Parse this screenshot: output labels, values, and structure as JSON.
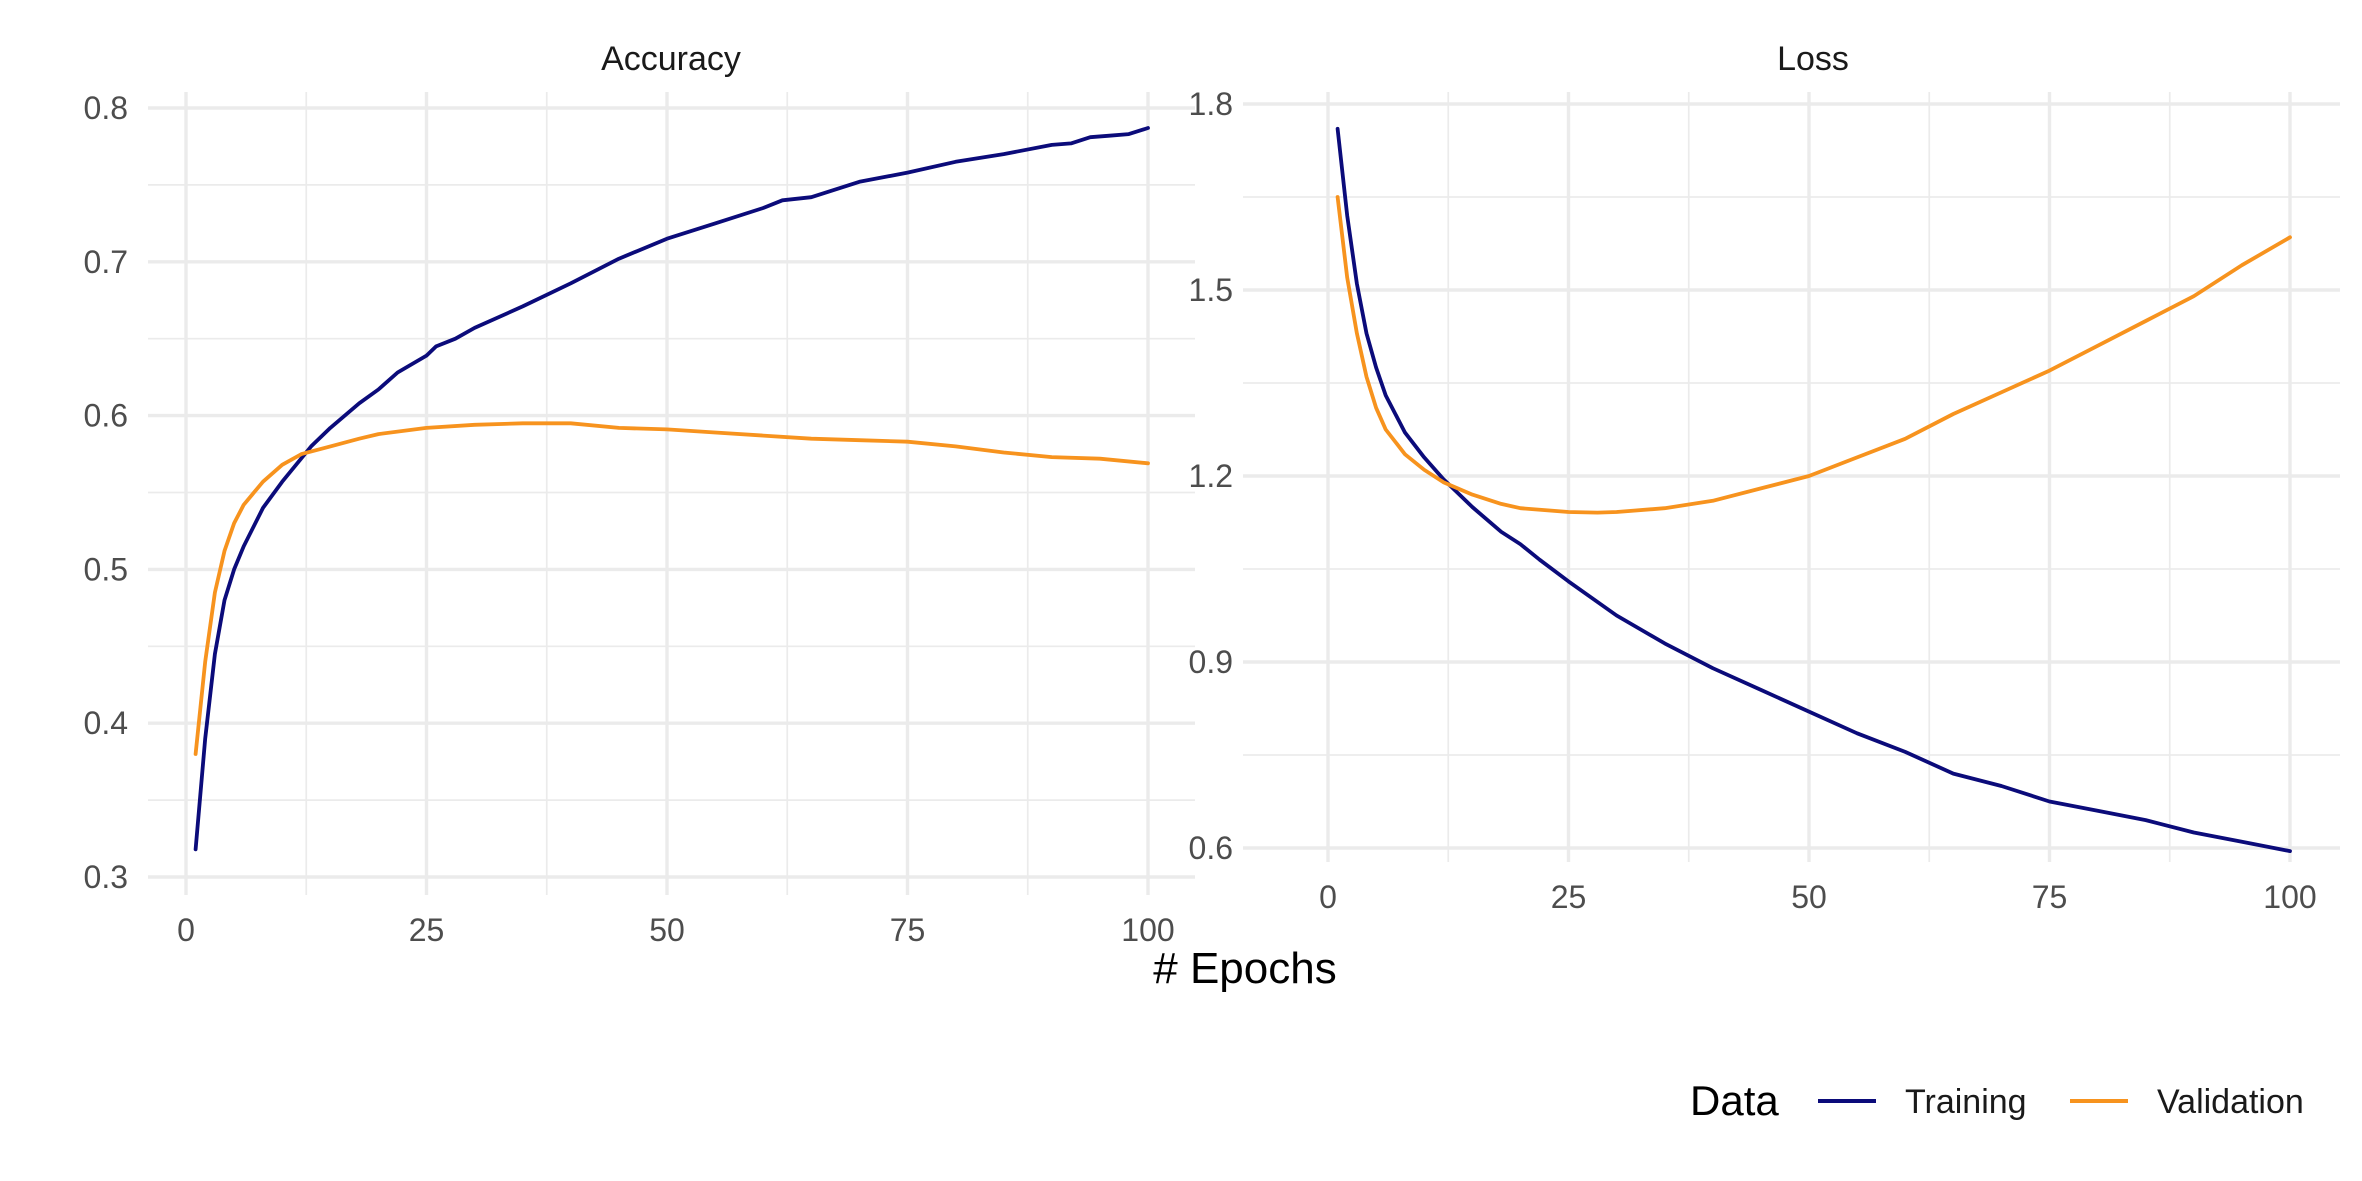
{
  "chart_data": [
    {
      "type": "line",
      "title": "Accuracy",
      "xlabel": "# Epochs",
      "ylabel": "",
      "xlim": [
        0,
        100
      ],
      "ylim": [
        0.3,
        0.8
      ],
      "x_ticks": [
        0,
        25,
        50,
        75,
        100
      ],
      "y_ticks": [
        0.3,
        0.4,
        0.5,
        0.6,
        0.7,
        0.8
      ],
      "x_tick_labels": [
        "0",
        "25",
        "50",
        "75",
        "100"
      ],
      "y_tick_labels": [
        "0.3",
        "0.4",
        "0.5",
        "0.6",
        "0.7",
        "0.8"
      ],
      "grid": true,
      "series": [
        {
          "name": "Training",
          "color": "#0b0b7a",
          "x": [
            1,
            2,
            3,
            4,
            5,
            6,
            8,
            10,
            13,
            15,
            18,
            20,
            22,
            25,
            26,
            28,
            30,
            35,
            40,
            45,
            50,
            55,
            60,
            62,
            65,
            70,
            75,
            80,
            85,
            90,
            92,
            94,
            96,
            98,
            100
          ],
          "values": [
            0.318,
            0.39,
            0.445,
            0.48,
            0.5,
            0.515,
            0.54,
            0.557,
            0.58,
            0.592,
            0.608,
            0.617,
            0.628,
            0.639,
            0.645,
            0.65,
            0.657,
            0.671,
            0.686,
            0.702,
            0.715,
            0.725,
            0.735,
            0.74,
            0.742,
            0.752,
            0.758,
            0.765,
            0.77,
            0.776,
            0.777,
            0.781,
            0.782,
            0.783,
            0.787
          ]
        },
        {
          "name": "Validation",
          "color": "#f7931e",
          "x": [
            1,
            2,
            3,
            4,
            5,
            6,
            8,
            10,
            12,
            15,
            18,
            20,
            25,
            30,
            35,
            40,
            45,
            50,
            55,
            60,
            65,
            70,
            75,
            80,
            85,
            90,
            95,
            100
          ],
          "values": [
            0.38,
            0.44,
            0.485,
            0.512,
            0.53,
            0.542,
            0.557,
            0.568,
            0.575,
            0.58,
            0.585,
            0.588,
            0.592,
            0.594,
            0.595,
            0.595,
            0.592,
            0.591,
            0.589,
            0.587,
            0.585,
            0.584,
            0.583,
            0.58,
            0.576,
            0.573,
            0.572,
            0.569
          ]
        }
      ]
    },
    {
      "type": "line",
      "title": "Loss",
      "xlabel": "# Epochs",
      "ylabel": "",
      "xlim": [
        0,
        100
      ],
      "ylim": [
        0.6,
        1.8
      ],
      "x_ticks": [
        0,
        25,
        50,
        75,
        100
      ],
      "y_ticks": [
        0.6,
        0.9,
        1.2,
        1.5,
        1.8
      ],
      "x_tick_labels": [
        "0",
        "25",
        "50",
        "75",
        "100"
      ],
      "y_tick_labels": [
        "0.6",
        "0.9",
        "1.2",
        "1.5",
        "1.8"
      ],
      "grid": true,
      "series": [
        {
          "name": "Training",
          "color": "#0b0b7a",
          "x": [
            1,
            2,
            3,
            4,
            5,
            6,
            8,
            10,
            12,
            15,
            18,
            20,
            22,
            25,
            30,
            35,
            40,
            45,
            50,
            55,
            60,
            65,
            70,
            75,
            80,
            85,
            90,
            95,
            100
          ],
          "values": [
            1.76,
            1.62,
            1.51,
            1.43,
            1.375,
            1.33,
            1.27,
            1.23,
            1.195,
            1.15,
            1.11,
            1.09,
            1.065,
            1.03,
            0.975,
            0.93,
            0.89,
            0.855,
            0.82,
            0.785,
            0.755,
            0.72,
            0.7,
            0.675,
            0.66,
            0.645,
            0.625,
            0.61,
            0.595
          ]
        },
        {
          "name": "Validation",
          "color": "#f7931e",
          "x": [
            1,
            2,
            3,
            4,
            5,
            6,
            8,
            10,
            12,
            15,
            18,
            20,
            25,
            28,
            30,
            35,
            40,
            45,
            50,
            55,
            60,
            65,
            70,
            75,
            80,
            85,
            90,
            95,
            100
          ],
          "values": [
            1.65,
            1.52,
            1.43,
            1.36,
            1.31,
            1.275,
            1.235,
            1.21,
            1.19,
            1.17,
            1.155,
            1.148,
            1.142,
            1.141,
            1.142,
            1.148,
            1.16,
            1.18,
            1.2,
            1.23,
            1.26,
            1.3,
            1.335,
            1.37,
            1.41,
            1.45,
            1.49,
            1.54,
            1.585
          ]
        }
      ]
    }
  ],
  "shared_xlabel": "# Epochs",
  "legend": {
    "title": "Data",
    "placement": "bottom-right",
    "items": [
      {
        "label": "Training",
        "color": "#0b0b7a"
      },
      {
        "label": "Validation",
        "color": "#f7931e"
      }
    ]
  }
}
